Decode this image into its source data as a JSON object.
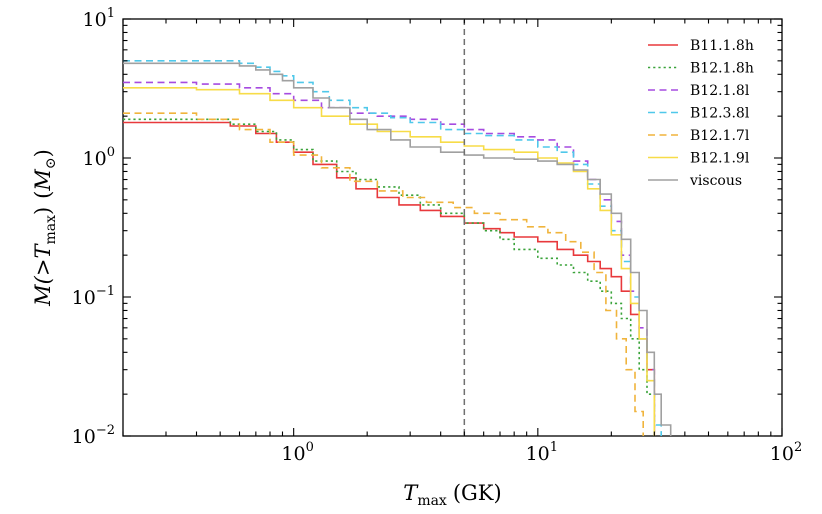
{
  "chart_data": {
    "type": "line",
    "xscale": "log",
    "yscale": "log",
    "xlim": [
      0.2,
      100
    ],
    "ylim": [
      0.01,
      10
    ],
    "xlabel_var": "T",
    "xlabel_sub": "max",
    "xlabel_unit": "(GK)",
    "ylabel_prefix": "M(>",
    "ylabel_var": "T",
    "ylabel_sub": "max",
    "ylabel_suffix": ")",
    "ylabel_unit_var": "M",
    "ylabel_unit_sub": "⊙",
    "x_ticks": [
      {
        "value": 1,
        "base": "10",
        "exp": "0"
      },
      {
        "value": 10,
        "base": "10",
        "exp": "1"
      },
      {
        "value": 100,
        "base": "10",
        "exp": "2"
      }
    ],
    "y_ticks": [
      {
        "value": 0.01,
        "base": "10",
        "exp": "−2"
      },
      {
        "value": 0.1,
        "base": "10",
        "exp": "−1"
      },
      {
        "value": 1,
        "base": "10",
        "exp": "0"
      },
      {
        "value": 10,
        "base": "10",
        "exp": "1"
      }
    ],
    "vline": {
      "x": 5,
      "color": "#707070",
      "style": "dashed"
    },
    "legend_position": "top-right",
    "series": [
      {
        "name": "B11.1.8h",
        "color": "#e8393c",
        "style": "solid",
        "x": [
          0.2,
          0.55,
          0.7,
          0.85,
          1.0,
          1.2,
          1.5,
          1.8,
          2.2,
          2.7,
          3.3,
          4.0,
          5.0,
          6.0,
          7.0,
          8.0,
          10.0,
          12.0,
          14.0,
          16.0,
          18.0,
          20.0,
          22.0,
          24.0,
          26.0,
          28.0,
          30.0
        ],
        "values": [
          1.8,
          1.7,
          1.5,
          1.3,
          1.1,
          0.9,
          0.72,
          0.6,
          0.52,
          0.46,
          0.42,
          0.38,
          0.34,
          0.31,
          0.29,
          0.27,
          0.25,
          0.22,
          0.2,
          0.18,
          0.16,
          0.14,
          0.11,
          0.075,
          0.05,
          0.03,
          0.01
        ]
      },
      {
        "name": "B12.1.8h",
        "color": "#3aa33a",
        "style": "dotted",
        "x": [
          0.2,
          0.55,
          0.7,
          0.85,
          1.0,
          1.2,
          1.5,
          1.8,
          2.2,
          2.7,
          3.3,
          4.0,
          5.0,
          6.0,
          7.0,
          8.0,
          10.0,
          12.0,
          14.0,
          16.0,
          18.0,
          20.0,
          22.0,
          24.0,
          26.0,
          28.0,
          30.0
        ],
        "values": [
          1.9,
          1.75,
          1.55,
          1.35,
          1.15,
          0.95,
          0.8,
          0.7,
          0.62,
          0.54,
          0.46,
          0.4,
          0.34,
          0.3,
          0.26,
          0.22,
          0.19,
          0.17,
          0.15,
          0.13,
          0.11,
          0.09,
          0.07,
          0.05,
          0.03,
          0.02,
          0.01
        ]
      },
      {
        "name": "B12.1.8l",
        "color": "#a64be0",
        "style": "dashed",
        "x": [
          0.2,
          0.4,
          0.6,
          0.8,
          1.0,
          1.3,
          1.7,
          2.2,
          3.0,
          4.0,
          5.0,
          6.0,
          8.0,
          10.0,
          12.0,
          14.0,
          16.0,
          18.0,
          20.0,
          22.0,
          24.0,
          26.0,
          28.0,
          30.0
        ],
        "values": [
          3.5,
          3.4,
          3.2,
          2.9,
          2.6,
          2.3,
          2.1,
          2.0,
          1.9,
          1.75,
          1.6,
          1.5,
          1.42,
          1.35,
          1.2,
          0.95,
          0.7,
          0.5,
          0.35,
          0.2,
          0.11,
          0.06,
          0.03,
          0.01
        ]
      },
      {
        "name": "B12.3.8l",
        "color": "#4fc8ea",
        "style": "dashed",
        "x": [
          0.2,
          0.6,
          0.7,
          0.8,
          0.9,
          1.0,
          1.2,
          1.4,
          1.7,
          2.0,
          2.5,
          3.0,
          4.0,
          5.0,
          6.0,
          8.0,
          10.0,
          12.0,
          14.0,
          16.0,
          18.0,
          20.0,
          22.0,
          24.0,
          26.0,
          28.0,
          30.0,
          32.0
        ],
        "values": [
          5.0,
          4.8,
          4.5,
          4.2,
          3.9,
          3.5,
          3.0,
          2.6,
          2.3,
          2.1,
          1.95,
          1.8,
          1.6,
          1.5,
          1.45,
          1.35,
          1.2,
          1.1,
          0.9,
          0.65,
          0.45,
          0.3,
          0.18,
          0.1,
          0.05,
          0.025,
          0.012,
          0.01
        ]
      },
      {
        "name": "B12.1.7l",
        "color": "#f0b43c",
        "style": "dashed",
        "x": [
          0.2,
          0.4,
          0.6,
          0.8,
          1.0,
          1.3,
          1.7,
          2.2,
          2.8,
          3.5,
          4.5,
          5.5,
          7.0,
          9.0,
          11.0,
          13.0,
          15.0,
          17.0,
          19.0,
          21.0,
          23.0,
          25.0,
          27.0
        ],
        "values": [
          2.1,
          1.9,
          1.6,
          1.3,
          1.05,
          0.85,
          0.68,
          0.58,
          0.52,
          0.48,
          0.44,
          0.4,
          0.36,
          0.32,
          0.29,
          0.25,
          0.21,
          0.15,
          0.08,
          0.05,
          0.03,
          0.015,
          0.01
        ]
      },
      {
        "name": "B12.1.9l",
        "color": "#f7dc48",
        "style": "solid",
        "x": [
          0.2,
          0.4,
          0.6,
          0.8,
          1.0,
          1.3,
          1.7,
          2.2,
          3.0,
          4.0,
          5.0,
          6.0,
          8.0,
          10.0,
          12.0,
          14.0,
          16.0,
          18.0,
          20.0,
          22.0,
          24.0,
          26.0,
          28.0,
          30.0
        ],
        "values": [
          3.2,
          3.1,
          2.9,
          2.6,
          2.3,
          2.0,
          1.75,
          1.55,
          1.42,
          1.3,
          1.22,
          1.15,
          1.1,
          1.0,
          0.92,
          0.8,
          0.6,
          0.42,
          0.28,
          0.16,
          0.09,
          0.05,
          0.025,
          0.01
        ]
      },
      {
        "name": "viscous",
        "color": "#a0a0a0",
        "style": "solid",
        "x": [
          0.2,
          0.6,
          0.7,
          0.8,
          0.9,
          1.0,
          1.2,
          1.4,
          1.7,
          2.0,
          2.5,
          3.0,
          4.0,
          5.0,
          6.0,
          8.0,
          10.0,
          12.0,
          14.0,
          16.0,
          18.0,
          20.0,
          22.0,
          24.0,
          26.0,
          28.0,
          30.0,
          32.0,
          35.0
        ],
        "values": [
          4.8,
          4.6,
          4.3,
          4.0,
          3.6,
          3.2,
          2.7,
          2.3,
          1.9,
          1.6,
          1.35,
          1.2,
          1.1,
          1.05,
          1.0,
          0.98,
          0.95,
          0.9,
          0.82,
          0.7,
          0.55,
          0.4,
          0.26,
          0.15,
          0.08,
          0.04,
          0.02,
          0.012,
          0.01
        ]
      }
    ]
  }
}
